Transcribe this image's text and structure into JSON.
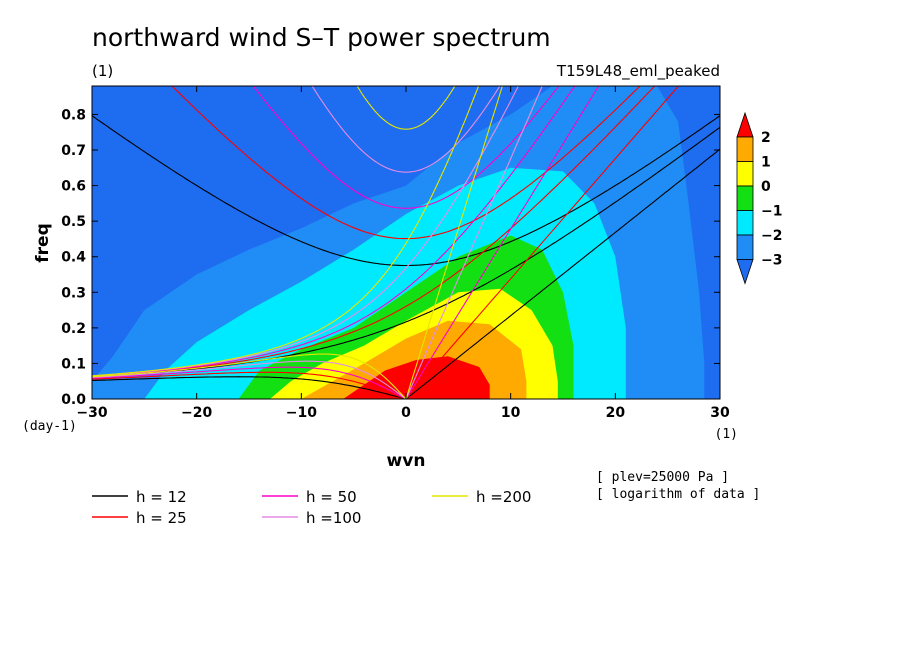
{
  "chart_data": {
    "type": "heatmap",
    "title": "northward wind S–T power spectrum",
    "subtitle_left": "(1)",
    "subtitle_right": "T159L48_eml_peaked",
    "xlabel": "wvn",
    "ylabel": "freq",
    "x_unit": "(1)",
    "y_unit": "(day-1)",
    "xlim": [
      -30,
      30
    ],
    "ylim": [
      0,
      0.88
    ],
    "x_ticks": [
      -30,
      -20,
      -10,
      0,
      10,
      20,
      30
    ],
    "x_tick_labels": [
      "−30",
      "−20",
      "−10",
      "0",
      "10",
      "20",
      "30"
    ],
    "y_ticks": [
      0.0,
      0.1,
      0.2,
      0.3,
      0.4,
      0.5,
      0.6,
      0.7,
      0.8
    ],
    "y_tick_labels": [
      "0.0",
      "0.1",
      "0.2",
      "0.3",
      "0.4",
      "0.5",
      "0.6",
      "0.7",
      "0.8"
    ],
    "colorbar": {
      "levels": [
        -3,
        -2,
        -1,
        0,
        1,
        2
      ],
      "level_labels": [
        "−3",
        "−2",
        "−1",
        "0",
        "1",
        "2"
      ],
      "colors": [
        "#1e6cf0",
        "#1f8df5",
        "#00eaff",
        "#13e013",
        "#ffff00",
        "#ffaa00",
        "#ff0000"
      ]
    },
    "contour_bands": [
      {
        "min_level": -3,
        "color": "#1f8df5",
        "points": [
          [
            -30,
            0.05
          ],
          [
            -28,
            0.12
          ],
          [
            -25,
            0.25
          ],
          [
            -20,
            0.35
          ],
          [
            -15,
            0.42
          ],
          [
            -10,
            0.48
          ],
          [
            -5,
            0.55
          ],
          [
            0,
            0.6
          ],
          [
            5,
            0.72
          ],
          [
            10,
            0.8
          ],
          [
            14,
            0.88
          ],
          [
            24,
            0.88
          ],
          [
            26,
            0.78
          ],
          [
            27,
            0.55
          ],
          [
            28,
            0.3
          ],
          [
            28.5,
            0.1
          ],
          [
            28.5,
            0.0
          ],
          [
            -30,
            0.0
          ]
        ]
      },
      {
        "min_level": -2,
        "color": "#00eaff",
        "points": [
          [
            -25,
            0.0
          ],
          [
            -23,
            0.08
          ],
          [
            -20,
            0.16
          ],
          [
            -15,
            0.25
          ],
          [
            -10,
            0.33
          ],
          [
            -5,
            0.42
          ],
          [
            0,
            0.52
          ],
          [
            5,
            0.6
          ],
          [
            10,
            0.65
          ],
          [
            15,
            0.64
          ],
          [
            18,
            0.55
          ],
          [
            20,
            0.4
          ],
          [
            21,
            0.2
          ],
          [
            21,
            0.0
          ]
        ]
      },
      {
        "min_level": -1,
        "color": "#13e013",
        "points": [
          [
            -16,
            0.0
          ],
          [
            -14,
            0.08
          ],
          [
            -10,
            0.14
          ],
          [
            -5,
            0.2
          ],
          [
            0,
            0.3
          ],
          [
            5,
            0.4
          ],
          [
            10,
            0.46
          ],
          [
            13,
            0.42
          ],
          [
            15,
            0.3
          ],
          [
            16,
            0.15
          ],
          [
            16,
            0.0
          ]
        ]
      },
      {
        "min_level": 0,
        "color": "#ffff00",
        "points": [
          [
            -13,
            0.0
          ],
          [
            -11,
            0.05
          ],
          [
            -8,
            0.1
          ],
          [
            -4,
            0.15
          ],
          [
            0,
            0.22
          ],
          [
            5,
            0.3
          ],
          [
            9,
            0.31
          ],
          [
            12,
            0.25
          ],
          [
            14,
            0.15
          ],
          [
            14.5,
            0.05
          ],
          [
            14.5,
            0.0
          ]
        ]
      },
      {
        "min_level": 1,
        "color": "#ffaa00",
        "points": [
          [
            -10,
            0.0
          ],
          [
            -7,
            0.05
          ],
          [
            -4,
            0.1
          ],
          [
            0,
            0.17
          ],
          [
            4,
            0.22
          ],
          [
            8,
            0.21
          ],
          [
            11,
            0.14
          ],
          [
            11.5,
            0.05
          ],
          [
            11.5,
            0.0
          ]
        ]
      },
      {
        "min_level": 2,
        "color": "#ff0000",
        "points": [
          [
            -6,
            0.0
          ],
          [
            -4,
            0.04
          ],
          [
            -2,
            0.08
          ],
          [
            1,
            0.11
          ],
          [
            4,
            0.12
          ],
          [
            7,
            0.09
          ],
          [
            8,
            0.04
          ],
          [
            8,
            0.0
          ]
        ]
      }
    ],
    "series": [
      {
        "name": "h = 12",
        "color": "#000000"
      },
      {
        "name": "h = 25",
        "color": "#ff0000"
      },
      {
        "name": "h = 50",
        "color": "#ff00cc"
      },
      {
        "name": "h =100",
        "color": "#e68ce6"
      },
      {
        "name": "h =200",
        "color": "#e6e600"
      }
    ],
    "legend": "bottom",
    "notes": [
      "[ plev=25000 Pa ]",
      "[ logarithm of data ]"
    ]
  }
}
